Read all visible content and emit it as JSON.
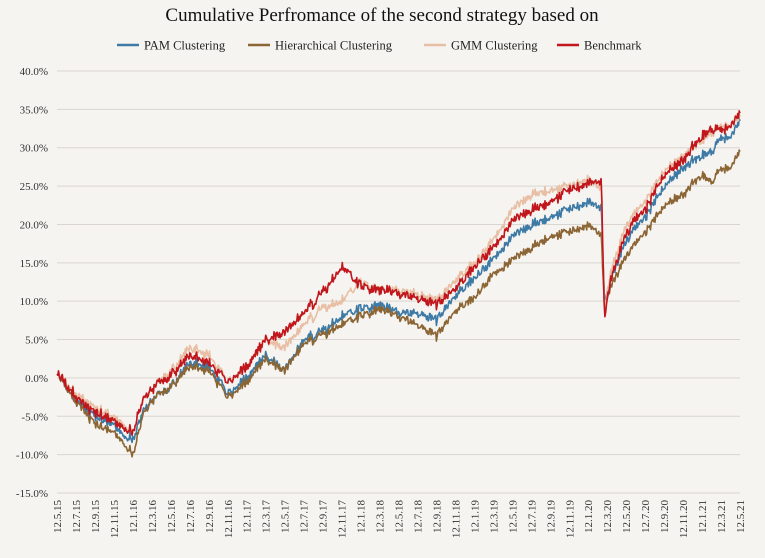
{
  "chart_data": {
    "type": "line",
    "title": "Cumulative Perfromance of the second strategy based on",
    "xlabel": "",
    "ylabel": "",
    "ylim": [
      -15,
      40
    ],
    "y_ticks": [
      "40.0%",
      "35.0%",
      "30.0%",
      "25.0%",
      "20.0%",
      "15.0%",
      "10.0%",
      "5.0%",
      "0.0%",
      "-5.0%",
      "-10.0%",
      "-15.0%"
    ],
    "y_tick_values": [
      40,
      35,
      30,
      25,
      20,
      15,
      10,
      5,
      0,
      -5,
      -10,
      -15
    ],
    "x_ticks": [
      "12.5.15",
      "12.7.15",
      "12.9.15",
      "12.11.15",
      "12.1.16",
      "12.3.16",
      "12.5.16",
      "12.7.16",
      "12.9.16",
      "12.11.16",
      "12.1.17",
      "12.3.17",
      "12.5.17",
      "12.7.17",
      "12.9.17",
      "12.11.17",
      "12.1.18",
      "12.3.18",
      "12.5.18",
      "12.7.18",
      "12.9.18",
      "12.11.18",
      "12.1.19",
      "12.3.19",
      "12.5.19",
      "12.7.19",
      "12.9.19",
      "12.11.19",
      "12.1.20",
      "12.3.20",
      "12.5.20",
      "12.7.20",
      "12.9.20",
      "12.11.20",
      "12.1.21",
      "12.3.21",
      "12.5.21"
    ],
    "grid": "horizontal",
    "legend": "top",
    "x": [
      0,
      1,
      2,
      3,
      3.5,
      4,
      4.5,
      5,
      6,
      7,
      8,
      9,
      10,
      11,
      12,
      13,
      14,
      15,
      16,
      17,
      18,
      19,
      20,
      21,
      22,
      23,
      24,
      25,
      26,
      27,
      28,
      28.7,
      28.85,
      29,
      29.2,
      30,
      31,
      32,
      33,
      34,
      34.5,
      35,
      35.5,
      36
    ],
    "series": [
      {
        "name": "PAM Clustering",
        "color": "#3d7aa6",
        "values": [
          0.5,
          -3,
          -5,
          -6,
          -7.5,
          -8,
          -4.5,
          -3,
          -1,
          2,
          1.5,
          -2,
          0,
          3,
          1,
          5,
          6,
          8,
          9,
          9.5,
          8.5,
          8.5,
          7.5,
          11,
          13,
          15.5,
          18.5,
          20,
          21,
          22,
          23,
          22,
          10,
          11,
          13,
          18,
          21,
          25,
          27.5,
          29,
          29.5,
          31,
          31.5,
          33.5
        ]
      },
      {
        "name": "Hierarchical Clustering",
        "color": "#8b6534",
        "values": [
          0.5,
          -3,
          -6,
          -7,
          -8.5,
          -10,
          -5,
          -3,
          -1,
          1.5,
          1,
          -2.5,
          -0.5,
          2.5,
          1,
          4.5,
          5.5,
          7,
          8,
          9,
          8,
          7,
          5.5,
          9,
          10.5,
          13.5,
          15.5,
          17,
          18.5,
          19,
          20,
          18.5,
          9,
          10,
          12,
          16,
          19,
          22.5,
          24,
          26.5,
          25.5,
          27,
          27.5,
          29.5
        ]
      },
      {
        "name": "GMM Clustering",
        "color": "#e8bfa5",
        "values": [
          0.5,
          -2,
          -4,
          -5,
          -6,
          -7,
          -3,
          -1.5,
          1,
          4,
          3,
          -0.5,
          1.5,
          5,
          4,
          7,
          9,
          10,
          12.5,
          11.5,
          11.5,
          11,
          10,
          13,
          15,
          18,
          22,
          24,
          24.5,
          25,
          26,
          24.5,
          9,
          11,
          14,
          20,
          23,
          27,
          29,
          31,
          32,
          32.5,
          33,
          34
        ]
      },
      {
        "name": "Benchmark",
        "color": "#c0161c",
        "values": [
          0.5,
          -2.5,
          -4.5,
          -5.5,
          -6.5,
          -7,
          -3,
          -1.5,
          0.5,
          3,
          2,
          -0.5,
          1.5,
          5,
          6,
          8.5,
          11,
          14.5,
          12,
          11.5,
          11,
          10.5,
          9.5,
          12,
          14.5,
          17,
          20.5,
          22,
          23,
          24.5,
          25.5,
          25.5,
          8,
          10,
          13,
          19,
          22,
          26.5,
          28.5,
          31.5,
          32.5,
          32,
          33,
          34.5
        ]
      }
    ]
  }
}
